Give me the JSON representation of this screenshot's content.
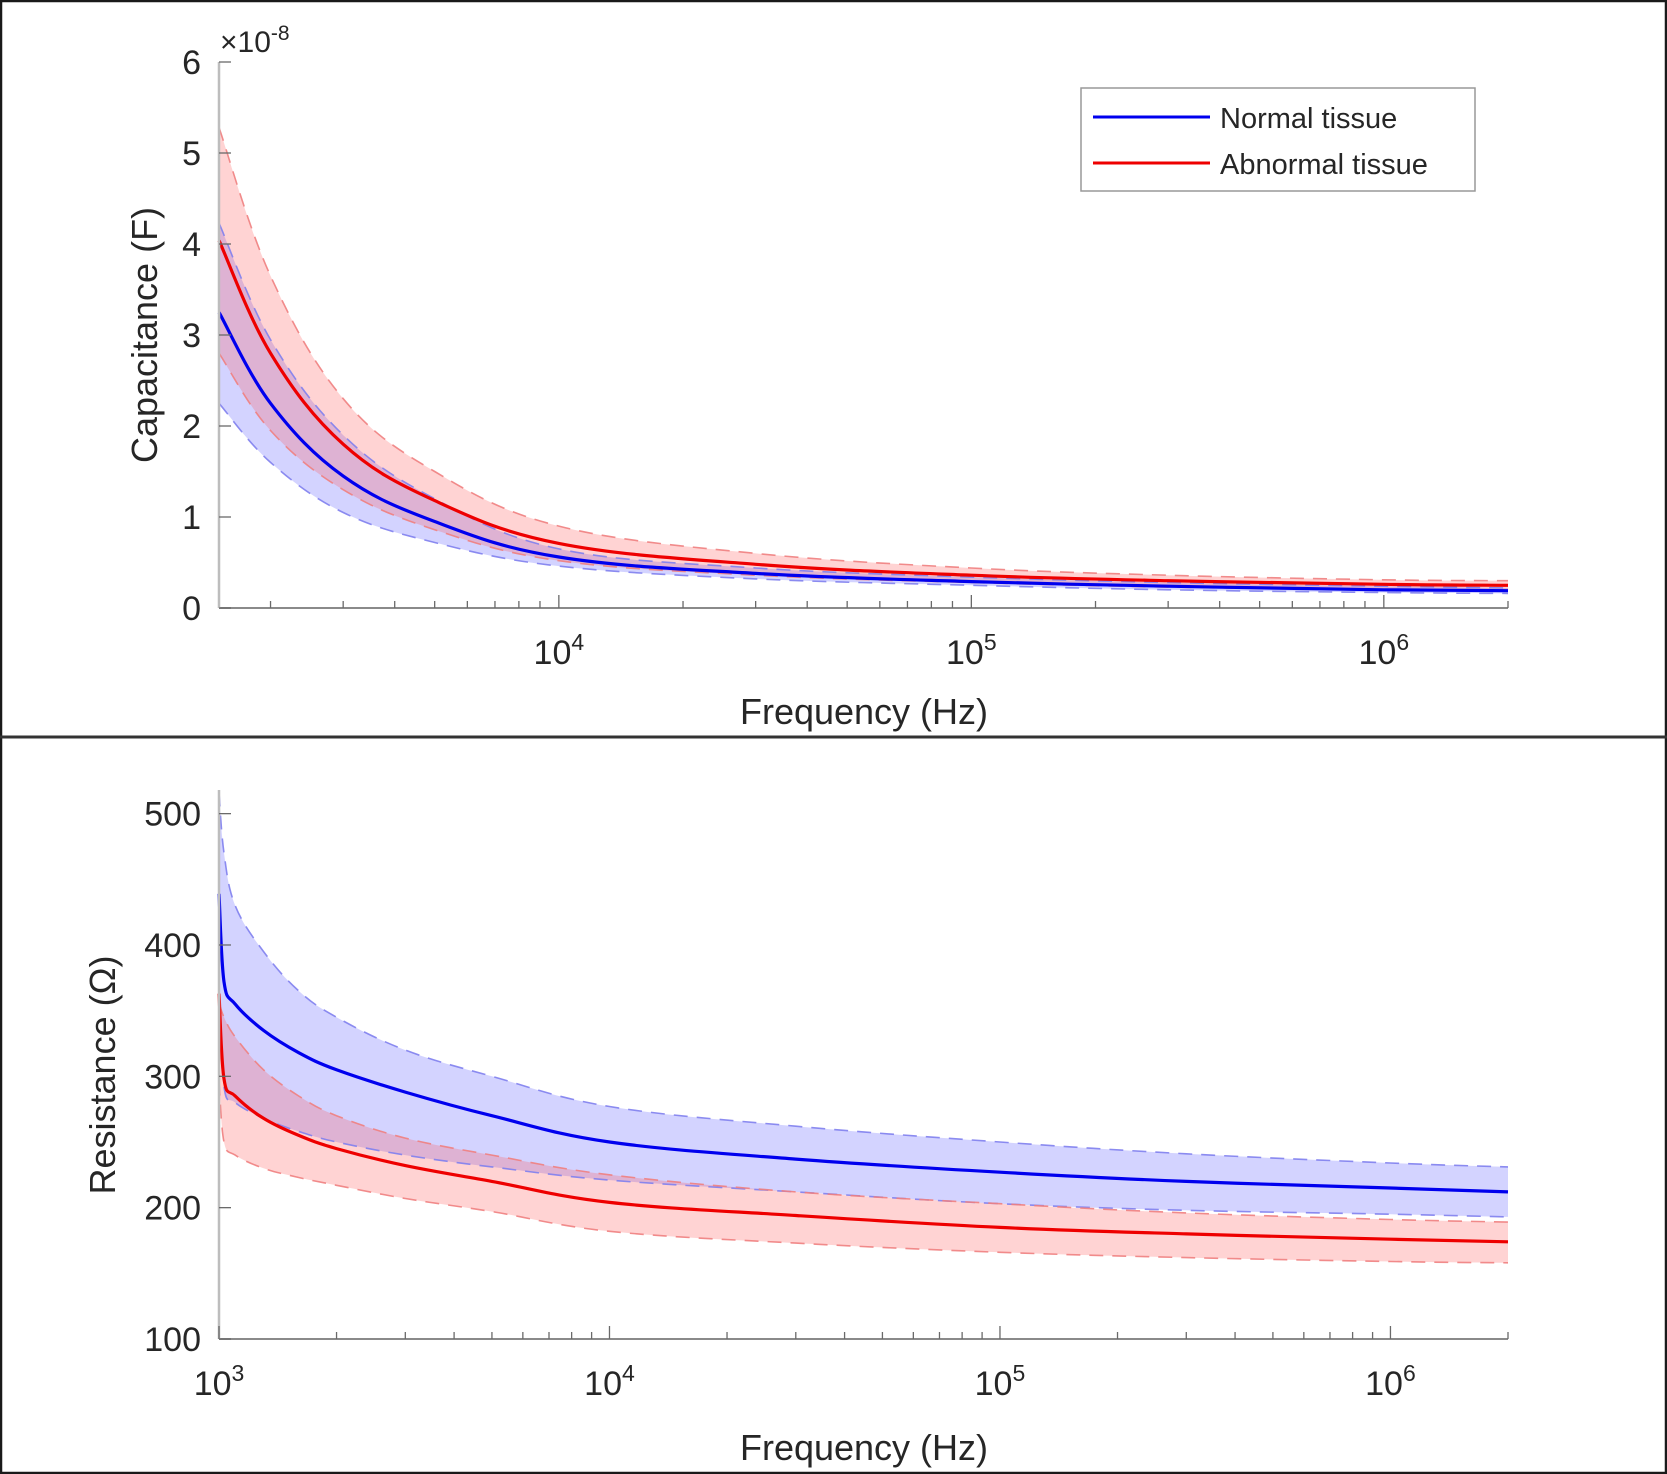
{
  "chart_data": [
    {
      "type": "line",
      "panel": "top",
      "title": "",
      "xlabel": "Frequency (Hz)",
      "ylabel": "Capacitance (F)",
      "y_exponent_label": "×10",
      "y_exponent_power": "-8",
      "xscale": "log",
      "xlim": [
        1500,
        2000000
      ],
      "ylim": [
        0,
        6
      ],
      "x_ticks": [
        {
          "value": 10000,
          "base": "10",
          "exp": "4"
        },
        {
          "value": 100000,
          "base": "10",
          "exp": "5"
        },
        {
          "value": 1000000,
          "base": "10",
          "exp": "6"
        }
      ],
      "y_ticks": [
        {
          "value": 0,
          "label": "0"
        },
        {
          "value": 1,
          "label": "1"
        },
        {
          "value": 2,
          "label": "2"
        },
        {
          "value": 3,
          "label": "3"
        },
        {
          "value": 4,
          "label": "4"
        },
        {
          "value": 5,
          "label": "5"
        },
        {
          "value": 6,
          "label": "6"
        }
      ],
      "x": [
        1500,
        2000,
        3000,
        5000,
        10000,
        30000,
        100000,
        300000,
        1000000,
        2000000
      ],
      "series": [
        {
          "name": "Normal tissue",
          "color": "#0000ee",
          "role": "mean",
          "values": [
            3.25,
            2.25,
            1.45,
            0.95,
            0.56,
            0.38,
            0.29,
            0.24,
            0.2,
            0.19
          ]
        },
        {
          "name": "Normal tissue upper",
          "color": "#8080ee",
          "role": "band-upper",
          "band_of": "Normal tissue",
          "values": [
            4.23,
            2.95,
            1.9,
            1.2,
            0.65,
            0.44,
            0.34,
            0.28,
            0.24,
            0.22
          ]
        },
        {
          "name": "Normal tissue lower",
          "color": "#8080ee",
          "role": "band-lower",
          "band_of": "Normal tissue",
          "values": [
            2.25,
            1.6,
            1.05,
            0.72,
            0.46,
            0.32,
            0.25,
            0.2,
            0.17,
            0.16
          ]
        },
        {
          "name": "Abnormal tissue",
          "color": "#ee0000",
          "role": "mean",
          "values": [
            4.04,
            2.8,
            1.8,
            1.18,
            0.71,
            0.48,
            0.36,
            0.3,
            0.26,
            0.25
          ]
        },
        {
          "name": "Abnormal tissue upper",
          "color": "#f08080",
          "role": "band-upper",
          "band_of": "Abnormal tissue",
          "values": [
            5.28,
            3.65,
            2.3,
            1.5,
            0.9,
            0.6,
            0.44,
            0.36,
            0.31,
            0.3
          ]
        },
        {
          "name": "Abnormal tissue lower",
          "color": "#f08080",
          "role": "band-lower",
          "band_of": "Abnormal tissue",
          "values": [
            2.8,
            1.95,
            1.3,
            0.86,
            0.52,
            0.36,
            0.28,
            0.23,
            0.2,
            0.19
          ]
        }
      ],
      "legend": {
        "placement": "top-right",
        "entries": [
          {
            "label": "Normal tissue",
            "color": "#0000ee"
          },
          {
            "label": "Abnormal tissue",
            "color": "#ee0000"
          }
        ]
      },
      "grid": false
    },
    {
      "type": "line",
      "panel": "bottom",
      "title": "",
      "xlabel": "Frequency (Hz)",
      "ylabel": "Resistance (Ω)",
      "xscale": "log",
      "xlim": [
        1000,
        2000000
      ],
      "ylim": [
        100,
        518
      ],
      "x_ticks": [
        {
          "value": 1000,
          "base": "10",
          "exp": "3"
        },
        {
          "value": 10000,
          "base": "10",
          "exp": "4"
        },
        {
          "value": 100000,
          "base": "10",
          "exp": "5"
        },
        {
          "value": 1000000,
          "base": "10",
          "exp": "6"
        }
      ],
      "y_ticks": [
        {
          "value": 100,
          "label": "100"
        },
        {
          "value": 200,
          "label": "200"
        },
        {
          "value": 300,
          "label": "300"
        },
        {
          "value": 400,
          "label": "400"
        },
        {
          "value": 500,
          "label": "500"
        }
      ],
      "x": [
        1000,
        1030,
        1100,
        1300,
        1600,
        2000,
        3000,
        5000,
        10000,
        30000,
        100000,
        300000,
        1000000,
        2000000
      ],
      "series": [
        {
          "name": "Normal tissue",
          "color": "#0000ee",
          "role": "mean",
          "values": [
            439,
            372,
            355,
            335,
            318,
            305,
            288,
            270,
            250,
            237,
            227,
            220,
            215,
            212
          ]
        },
        {
          "name": "Normal tissue upper",
          "color": "#8080ee",
          "role": "band-upper",
          "band_of": "Normal tissue",
          "values": [
            516,
            470,
            430,
            395,
            365,
            345,
            320,
            300,
            277,
            262,
            250,
            241,
            234,
            231
          ]
        },
        {
          "name": "Normal tissue lower",
          "color": "#8080ee",
          "role": "band-lower",
          "band_of": "Normal tissue",
          "values": [
            362,
            292,
            280,
            268,
            258,
            250,
            240,
            231,
            221,
            212,
            203,
            198,
            195,
            193
          ]
        },
        {
          "name": "Abnormal tissue",
          "color": "#ee0000",
          "role": "mean",
          "values": [
            363,
            298,
            285,
            268,
            255,
            245,
            232,
            220,
            204,
            194,
            185,
            180,
            176,
            174
          ]
        },
        {
          "name": "Abnormal tissue upper",
          "color": "#f08080",
          "role": "band-upper",
          "band_of": "Abnormal tissue",
          "values": [
            356,
            345,
            330,
            305,
            285,
            270,
            253,
            240,
            225,
            212,
            203,
            196,
            191,
            189
          ]
        },
        {
          "name": "Abnormal tissue lower",
          "color": "#f08080",
          "role": "band-lower",
          "band_of": "Abnormal tissue",
          "values": [
            296,
            250,
            240,
            230,
            223,
            217,
            207,
            197,
            182,
            173,
            166,
            162,
            159,
            158
          ]
        }
      ],
      "grid": false
    }
  ]
}
